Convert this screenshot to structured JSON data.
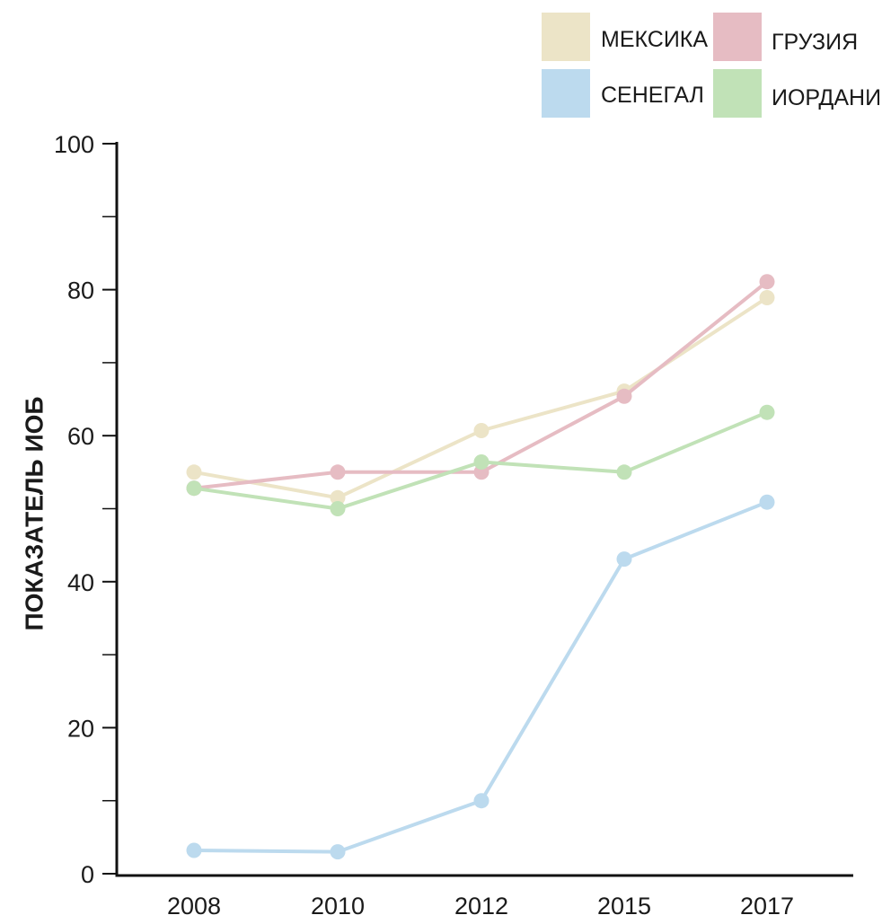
{
  "chart_data": {
    "type": "line",
    "categories": [
      "2008",
      "2010",
      "2012",
      "2015",
      "2017"
    ],
    "ylabel": "ПОКАЗАТЕЛЬ ИОБ",
    "ylim": [
      0,
      100
    ],
    "yticks": [
      0,
      20,
      40,
      60,
      80,
      100
    ],
    "grid": false,
    "legend": "top-right",
    "series": [
      {
        "name": "МЕКСИКА",
        "color": "#ece4c7",
        "values": [
          55,
          51.5,
          60.7,
          66.1,
          78.9
        ]
      },
      {
        "name": "ГРУЗИЯ",
        "color": "#e6bcc3",
        "values": [
          52.8,
          55,
          55,
          65.4,
          81.1
        ]
      },
      {
        "name": "СЕНЕГАЛ",
        "color": "#bcdaee",
        "values": [
          3.2,
          3,
          10,
          43.1,
          50.9
        ]
      },
      {
        "name": "ИОРДАНИЯ",
        "color": "#c1e2b7",
        "values": [
          52.8,
          50,
          56.4,
          55,
          63.2
        ]
      }
    ]
  }
}
